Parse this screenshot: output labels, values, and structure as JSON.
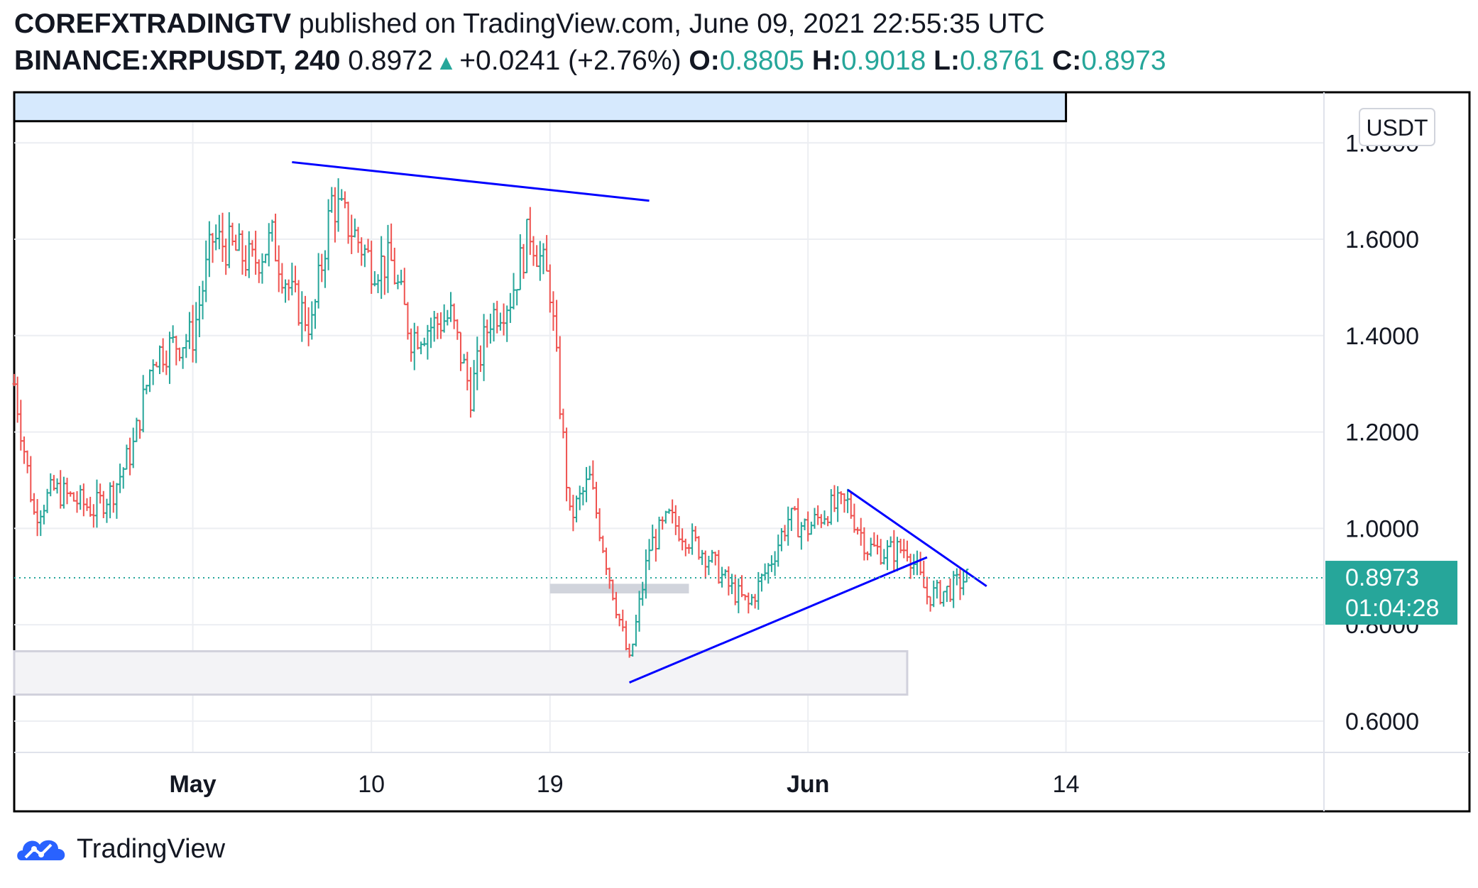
{
  "header": {
    "publisher": "COREFXTRADINGTV",
    "published_text": "published on TradingView.com, June 09, 2021 22:55:35 UTC",
    "symbol": "BINANCE:XRPUSDT, 240",
    "last": "0.8972",
    "change": "+0.0241 (+2.76%)",
    "o_label": "O:",
    "o_value": "0.8805",
    "h_label": "H:",
    "h_value": "0.9018",
    "l_label": "L:",
    "l_value": "0.8761",
    "c_label": "C:",
    "c_value": "0.8973"
  },
  "footer": {
    "brand": "TradingView"
  },
  "colors": {
    "up": "#26a69a",
    "down": "#ef5350",
    "trendline": "#0000ff",
    "price_tag": "#26a69a"
  },
  "chart_data": {
    "type": "ohlc",
    "currency_label": "USDT",
    "y_ticks": [
      "0.6000",
      "0.8000",
      "1.0000",
      "1.2000",
      "1.4000",
      "1.6000",
      "1.8000"
    ],
    "ylim": [
      0.535,
      1.905
    ],
    "x_ticks": [
      {
        "label": "May",
        "date": "2021-05-01",
        "bold": true
      },
      {
        "label": "10",
        "date": "2021-05-10",
        "bold": false
      },
      {
        "label": "19",
        "date": "2021-05-19",
        "bold": false
      },
      {
        "label": "Jun",
        "date": "2021-06-01",
        "bold": true
      },
      {
        "label": "14",
        "date": "2021-06-14",
        "bold": false
      }
    ],
    "xlim": [
      "2021-04-22",
      "2021-06-27"
    ],
    "price_tag": {
      "price": "0.8973",
      "countdown": "01:04:28",
      "value": 0.8973
    },
    "grid": true,
    "close_path": [
      [
        "2021-04-22",
        1.3
      ],
      [
        "2021-04-23",
        1.03
      ],
      [
        "2021-04-24",
        1.08
      ],
      [
        "2021-04-25",
        1.06
      ],
      [
        "2021-04-26",
        1.04
      ],
      [
        "2021-04-27",
        1.08
      ],
      [
        "2021-04-28",
        1.17
      ],
      [
        "2021-04-29",
        1.36
      ],
      [
        "2021-04-30",
        1.38
      ],
      [
        "2021-05-01",
        1.4
      ],
      [
        "2021-05-02",
        1.6
      ],
      [
        "2021-05-03",
        1.58
      ],
      [
        "2021-05-04",
        1.55
      ],
      [
        "2021-05-05",
        1.6
      ],
      [
        "2021-05-06",
        1.48
      ],
      [
        "2021-05-07",
        1.42
      ],
      [
        "2021-05-08",
        1.68
      ],
      [
        "2021-05-09",
        1.62
      ],
      [
        "2021-05-10",
        1.55
      ],
      [
        "2021-05-11",
        1.55
      ],
      [
        "2021-05-12",
        1.4
      ],
      [
        "2021-05-13",
        1.42
      ],
      [
        "2021-05-14",
        1.44
      ],
      [
        "2021-05-15",
        1.28
      ],
      [
        "2021-05-16",
        1.44
      ],
      [
        "2021-05-17",
        1.48
      ],
      [
        "2021-05-18",
        1.62
      ],
      [
        "2021-05-19",
        1.5
      ],
      [
        "2021-05-20",
        1.02
      ],
      [
        "2021-05-21",
        1.1
      ],
      [
        "2021-05-22",
        0.9
      ],
      [
        "2021-05-23",
        0.72
      ],
      [
        "2021-05-24",
        0.96
      ],
      [
        "2021-05-25",
        1.02
      ],
      [
        "2021-05-26",
        0.98
      ],
      [
        "2021-05-27",
        0.94
      ],
      [
        "2021-05-28",
        0.88
      ],
      [
        "2021-05-29",
        0.84
      ],
      [
        "2021-05-30",
        0.92
      ],
      [
        "2021-05-31",
        1.02
      ],
      [
        "2021-06-01",
        1.0
      ],
      [
        "2021-06-02",
        1.04
      ],
      [
        "2021-06-03",
        1.05
      ],
      [
        "2021-06-04",
        0.96
      ],
      [
        "2021-06-05",
        0.95
      ],
      [
        "2021-06-06",
        0.96
      ],
      [
        "2021-06-07",
        0.86
      ],
      [
        "2021-06-08",
        0.87
      ],
      [
        "2021-06-09",
        0.8973
      ]
    ],
    "annotations": {
      "trendlines": [
        {
          "from": [
            "2021-05-06",
            1.76
          ],
          "to": [
            "2021-05-24",
            1.68
          ]
        },
        {
          "from": [
            "2021-05-23",
            0.68
          ],
          "to": [
            "2021-06-07",
            0.94
          ]
        },
        {
          "from": [
            "2021-06-03",
            1.08
          ],
          "to": [
            "2021-06-10",
            0.88
          ]
        }
      ],
      "rectangles": [
        {
          "from": [
            "2021-04-22",
            1.905
          ],
          "to": [
            "2021-06-14",
            1.845
          ],
          "fill": "#d6e9fd",
          "stroke": "#000000"
        },
        {
          "from": [
            "2021-05-19",
            0.885
          ],
          "to": [
            "2021-05-26",
            0.865
          ],
          "fill": "#d1d4dc",
          "stroke": "none"
        },
        {
          "from": [
            "2021-04-22",
            0.745
          ],
          "to": [
            "2021-06-06",
            0.655
          ],
          "fill": "#f3f3f6",
          "stroke": "#d1d1dc"
        }
      ]
    }
  }
}
